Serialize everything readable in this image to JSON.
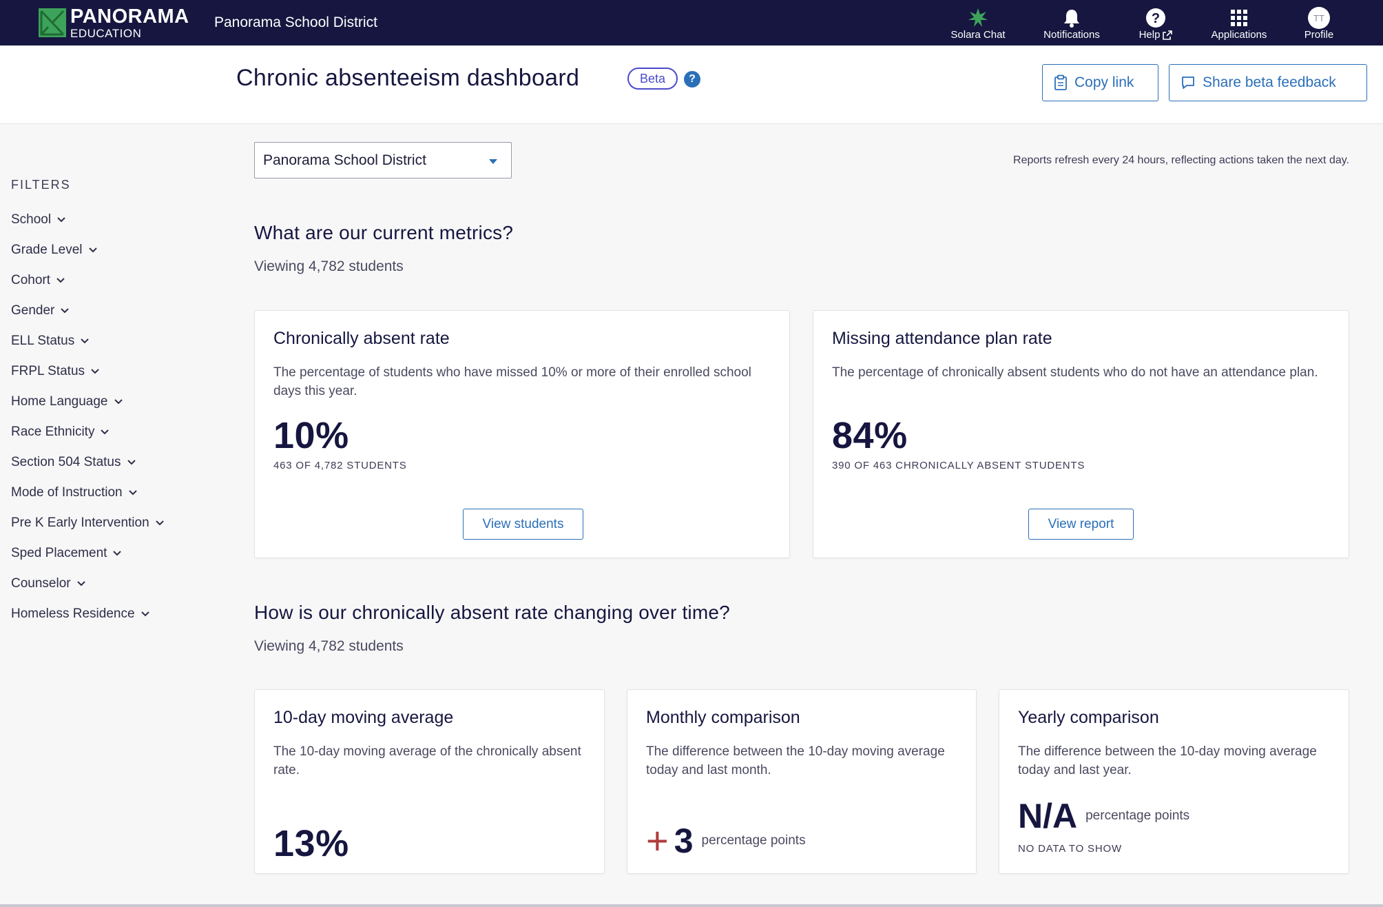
{
  "nav": {
    "logo_line1": "PANORAMA",
    "logo_line2": "EDUCATION",
    "district": "Panorama School District",
    "items": [
      {
        "label": "Solara Chat",
        "icon": "solara-star-icon"
      },
      {
        "label": "Notifications",
        "icon": "bell-icon"
      },
      {
        "label": "Help",
        "icon": "help-icon"
      },
      {
        "label": "Applications",
        "icon": "grid-icon"
      },
      {
        "label": "Profile",
        "icon": "avatar",
        "initials": "TT"
      }
    ]
  },
  "header": {
    "title": "Chronic absenteeism dashboard",
    "badge": "Beta",
    "help_glyph": "?",
    "copy_link": "Copy link",
    "share_feedback": "Share beta feedback"
  },
  "filters": {
    "title": "FILTERS",
    "items": [
      "School",
      "Grade Level",
      "Cohort",
      "Gender",
      "ELL Status",
      "FRPL Status",
      "Home Language",
      "Race Ethnicity",
      "Section 504 Status",
      "Mode of Instruction",
      "Pre K Early Intervention",
      "Sped Placement",
      "Counselor",
      "Homeless Residence"
    ]
  },
  "main": {
    "district_select": "Panorama School District",
    "refresh_note": "Reports refresh every 24 hours, reflecting actions taken the next day.",
    "section1": {
      "title": "What are our current metrics?",
      "viewing": "Viewing 4,782 students"
    },
    "card_absent": {
      "title": "Chronically absent rate",
      "desc": "The percentage of students who have missed 10% or more of their enrolled school days this year.",
      "value": "10%",
      "sub": "463 OF 4,782 STUDENTS",
      "button": "View students"
    },
    "card_plan": {
      "title": "Missing attendance plan rate",
      "desc": "The percentage of chronically absent students who do not have an attendance plan.",
      "value": "84%",
      "sub": "390 OF 463 CHRONICALLY ABSENT STUDENTS",
      "button": "View report"
    },
    "section2": {
      "title": "How is our chronically absent rate changing over time?",
      "viewing": "Viewing 4,782 students"
    },
    "card_moving": {
      "title": "10-day moving average",
      "desc": "The 10-day moving average of the chronically absent rate.",
      "value": "13%"
    },
    "card_monthly": {
      "title": "Monthly comparison",
      "desc": "The difference between the 10-day moving average today and last month.",
      "sign": "+",
      "value": "3",
      "unit": "percentage points"
    },
    "card_yearly": {
      "title": "Yearly comparison",
      "desc": "The difference between the 10-day moving average today and last year.",
      "value": "N/A",
      "unit": "percentage points",
      "sub": "NO DATA TO SHOW"
    }
  },
  "colors": {
    "nav_bg": "#161640",
    "accent": "#2a6fb8",
    "beta": "#4a4acc",
    "logo_green": "#3da35a",
    "increase_red": "#b23b3b"
  }
}
